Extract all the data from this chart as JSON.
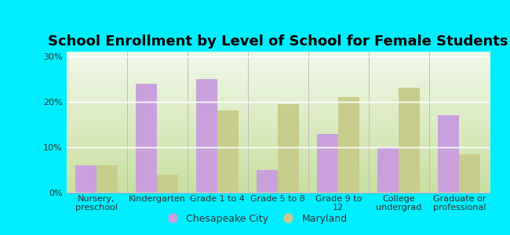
{
  "title": "School Enrollment by Level of School for Female Students",
  "categories": [
    "Nursery,\npreschool",
    "Kindergarten",
    "Grade 1 to 4",
    "Grade 5 to 8",
    "Grade 9 to\n12",
    "College\nundergrad",
    "Graduate or\nprofessional"
  ],
  "chesapeake": [
    6.0,
    24.0,
    25.0,
    5.0,
    13.0,
    10.0,
    17.0
  ],
  "maryland": [
    6.0,
    4.0,
    18.0,
    19.5,
    21.0,
    23.0,
    8.5
  ],
  "chesapeake_color": "#c9a0dc",
  "maryland_color": "#c8cc8a",
  "background_outer": "#00eeff",
  "background_inner_bottom": "#d4e8a0",
  "background_inner_top": "#f8fff8",
  "yticks": [
    0,
    10,
    20,
    30
  ],
  "ylim": [
    0,
    31
  ],
  "bar_width": 0.35,
  "title_fontsize": 13,
  "tick_fontsize": 8,
  "legend_fontsize": 9,
  "legend_label_chesapeake": "Chesapeake City",
  "legend_label_maryland": "Maryland"
}
